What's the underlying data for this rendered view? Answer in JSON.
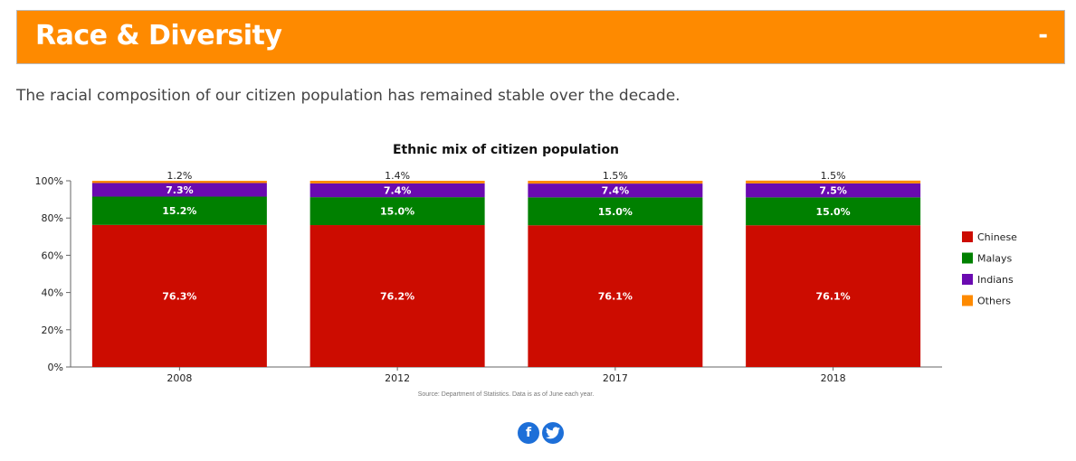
{
  "header": {
    "title": "Race & Diversity",
    "collapse_label": "-"
  },
  "intro": "The racial composition of our citizen population has remained stable over the decade.",
  "colors": {
    "header_bg": "#fe8a00",
    "chinese": "#cc0c00",
    "malays": "#008000",
    "indians": "#6a0ab0",
    "others": "#fe8a00"
  },
  "chart_data": {
    "type": "bar",
    "stacked": true,
    "title": "Ethnic mix of citizen population",
    "categories": [
      "2008",
      "2012",
      "2017",
      "2018"
    ],
    "series": [
      {
        "name": "Chinese",
        "values": [
          76.3,
          76.2,
          76.1,
          76.1
        ],
        "labels": [
          "76.3%",
          "76.2%",
          "76.1%",
          "76.1%"
        ],
        "color": "#cc0c00"
      },
      {
        "name": "Malays",
        "values": [
          15.2,
          15.0,
          15.0,
          15.0
        ],
        "labels": [
          "15.2%",
          "15.0%",
          "15.0%",
          "15.0%"
        ],
        "color": "#008000"
      },
      {
        "name": "Indians",
        "values": [
          7.3,
          7.4,
          7.4,
          7.5
        ],
        "labels": [
          "7.3%",
          "7.4%",
          "7.4%",
          "7.5%"
        ],
        "color": "#6a0ab0"
      },
      {
        "name": "Others",
        "values": [
          1.2,
          1.4,
          1.5,
          1.5
        ],
        "labels": [
          "1.2%",
          "1.4%",
          "1.5%",
          "1.5%"
        ],
        "color": "#fe8a00"
      }
    ],
    "y_ticks": [
      "0%",
      "20%",
      "40%",
      "60%",
      "80%",
      "100%"
    ],
    "ylim": [
      0,
      100
    ],
    "legend_position": "right",
    "grid": false,
    "source": "Source: Department of Statistics. Data is as of June each year."
  },
  "social": {
    "facebook_icon": "f",
    "twitter_icon": "t"
  }
}
